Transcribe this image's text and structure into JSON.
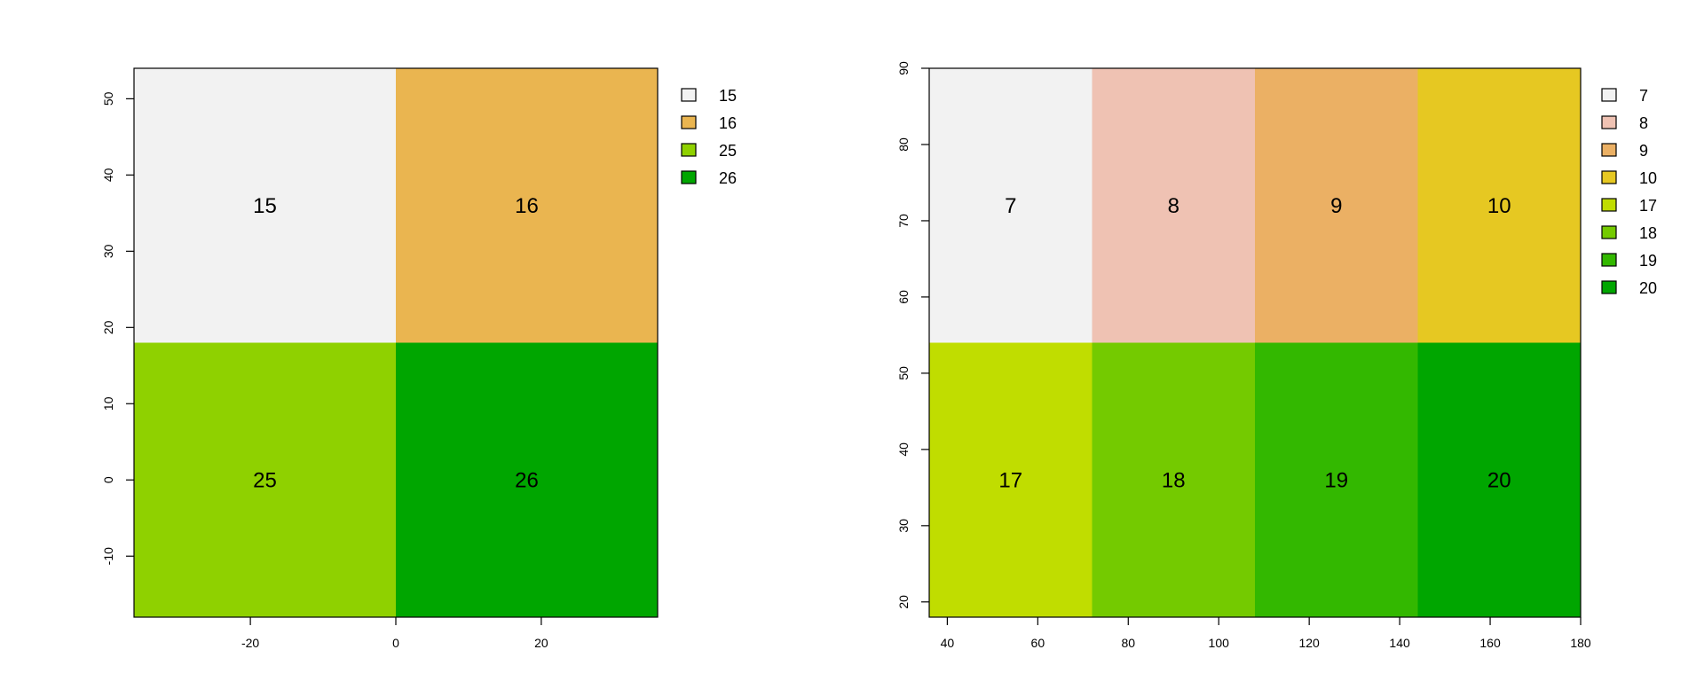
{
  "chart_data": [
    {
      "type": "heatmap",
      "title": "",
      "xlabel": "",
      "ylabel": "",
      "xlim": [
        -36,
        36
      ],
      "ylim": [
        -18,
        54
      ],
      "x_ticks": [
        -20,
        0,
        20
      ],
      "y_ticks": [
        -10,
        0,
        10,
        20,
        30,
        40,
        50
      ],
      "grid": false,
      "legend_position": "right",
      "cells": [
        {
          "x0": -36,
          "x1": 0,
          "y0": 18,
          "y1": 54,
          "value": 15,
          "color": "#f2f2f2"
        },
        {
          "x0": 0,
          "x1": 36,
          "y0": 18,
          "y1": 54,
          "value": 16,
          "color": "#eab550"
        },
        {
          "x0": -36,
          "x1": 0,
          "y0": -18,
          "y1": 18,
          "value": 25,
          "color": "#8fd100"
        },
        {
          "x0": 0,
          "x1": 36,
          "y0": -18,
          "y1": 18,
          "value": 26,
          "color": "#00a600"
        }
      ],
      "legend": [
        {
          "label": "15",
          "color": "#f2f2f2"
        },
        {
          "label": "16",
          "color": "#eab550"
        },
        {
          "label": "25",
          "color": "#8fd100"
        },
        {
          "label": "26",
          "color": "#00a600"
        }
      ]
    },
    {
      "type": "heatmap",
      "title": "",
      "xlabel": "",
      "ylabel": "",
      "xlim": [
        36,
        180
      ],
      "ylim": [
        18,
        90
      ],
      "x_ticks": [
        40,
        60,
        80,
        100,
        120,
        140,
        160,
        180
      ],
      "y_ticks": [
        20,
        30,
        40,
        50,
        60,
        70,
        80,
        90
      ],
      "grid": false,
      "legend_position": "right",
      "cells": [
        {
          "x0": 36,
          "x1": 72,
          "y0": 54,
          "y1": 90,
          "value": 7,
          "color": "#f2f2f2"
        },
        {
          "x0": 72,
          "x1": 108,
          "y0": 54,
          "y1": 90,
          "value": 8,
          "color": "#efc2b3"
        },
        {
          "x0": 108,
          "x1": 144,
          "y0": 54,
          "y1": 90,
          "value": 9,
          "color": "#ebb064"
        },
        {
          "x0": 144,
          "x1": 180,
          "y0": 54,
          "y1": 90,
          "value": 10,
          "color": "#e6c822"
        },
        {
          "x0": 36,
          "x1": 72,
          "y0": 18,
          "y1": 54,
          "value": 17,
          "color": "#c0dd00"
        },
        {
          "x0": 72,
          "x1": 108,
          "y0": 18,
          "y1": 54,
          "value": 18,
          "color": "#74ca00"
        },
        {
          "x0": 108,
          "x1": 144,
          "y0": 18,
          "y1": 54,
          "value": 19,
          "color": "#33b800"
        },
        {
          "x0": 144,
          "x1": 180,
          "y0": 18,
          "y1": 54,
          "value": 20,
          "color": "#00a600"
        }
      ],
      "legend": [
        {
          "label": "7",
          "color": "#f2f2f2"
        },
        {
          "label": "8",
          "color": "#efc2b3"
        },
        {
          "label": "9",
          "color": "#ebb064"
        },
        {
          "label": "10",
          "color": "#e6c822"
        },
        {
          "label": "17",
          "color": "#c0dd00"
        },
        {
          "label": "18",
          "color": "#74ca00"
        },
        {
          "label": "19",
          "color": "#33b800"
        },
        {
          "label": "20",
          "color": "#00a600"
        }
      ]
    }
  ]
}
